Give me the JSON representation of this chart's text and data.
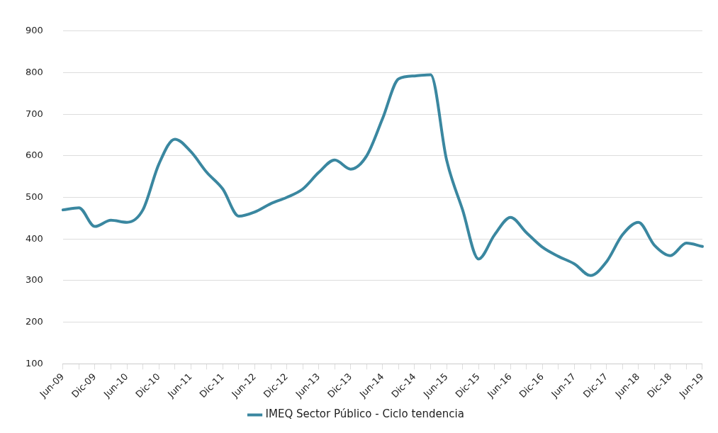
{
  "chart_data": {
    "type": "line",
    "categories": [
      "Jun-09",
      null,
      "Dic-09",
      null,
      "Jun-10",
      null,
      "Dic-10",
      null,
      "Jun-11",
      null,
      "Dic-11",
      null,
      "Jun-12",
      null,
      "Dic-12",
      null,
      "Jun-13",
      null,
      "Dic-13",
      null,
      "Jun-14",
      null,
      "Dic-14",
      null,
      "Jun-15",
      null,
      "Dic-15",
      null,
      "Jun-16",
      null,
      "Dic-16",
      null,
      "Jun-17",
      null,
      "Dic-17",
      null,
      "Jun-18",
      null,
      "Dic-18",
      null,
      "Jun-19"
    ],
    "series": [
      {
        "name": "IMEQ Sector Público - Ciclo tendencia",
        "color": "#3a87a0",
        "values": [
          470,
          475,
          430,
          445,
          440,
          470,
          580,
          640,
          610,
          560,
          520,
          455,
          465,
          485,
          500,
          520,
          560,
          590,
          568,
          600,
          690,
          785,
          792,
          795,
          590,
          470,
          352,
          410,
          452,
          415,
          380,
          358,
          340,
          312,
          345,
          410,
          440,
          385,
          360,
          390,
          382
        ]
      }
    ],
    "ylim": [
      100,
      900
    ],
    "yticks": [
      100,
      200,
      300,
      400,
      500,
      600,
      700,
      800,
      900
    ],
    "grid": "y",
    "legend": "bottom",
    "marker": "none",
    "line_style": "solid"
  }
}
